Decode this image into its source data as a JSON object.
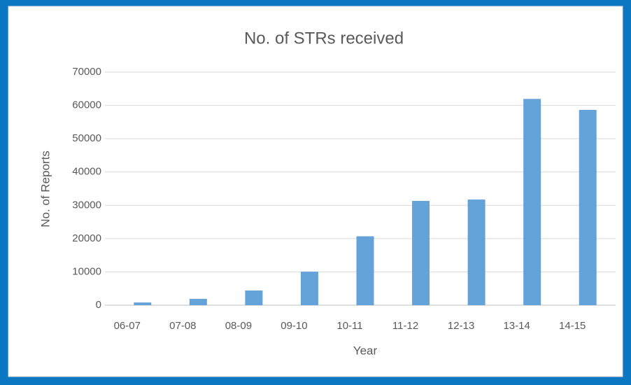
{
  "chart_data": {
    "type": "bar",
    "title": "No. of STRs received",
    "x_label": "Year",
    "y_label": "No. of Reports",
    "categories": [
      "06-07",
      "07-08",
      "08-09",
      "09-10",
      "10-11",
      "11-12",
      "12-13",
      "13-14",
      "14-15"
    ],
    "values": [
      817,
      1916,
      4409,
      10067,
      20698,
      31317,
      31731,
      61953,
      58646
    ],
    "color": "#64a2da",
    "ylim": [
      0,
      70000
    ],
    "yticks": [
      0,
      10000,
      20000,
      30000,
      40000,
      50000,
      60000,
      70000
    ],
    "grid": true
  }
}
